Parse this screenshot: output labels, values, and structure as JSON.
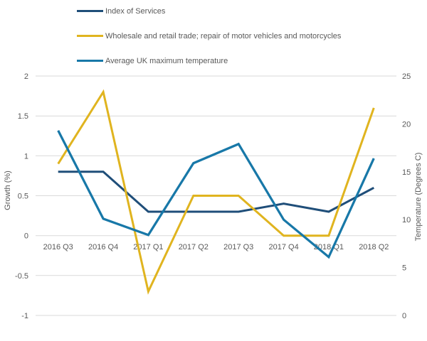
{
  "chart_data": {
    "type": "line",
    "categories": [
      "2016 Q3",
      "2016 Q4",
      "2017 Q1",
      "2017 Q2",
      "2017 Q3",
      "2017 Q4",
      "2018 Q1",
      "2018 Q2"
    ],
    "series": [
      {
        "name": "Index of Services",
        "axis": "left",
        "color": "#1F4E79",
        "stroke_width": 3,
        "values": [
          0.8,
          0.8,
          0.3,
          0.3,
          0.3,
          0.4,
          0.3,
          0.6
        ]
      },
      {
        "name": "Wholesale and retail trade; repair of motor vehicles and motorcycles",
        "axis": "left",
        "color": "#E0B41F",
        "stroke_width": 3,
        "values": [
          0.9,
          1.8,
          -0.7,
          0.5,
          0.5,
          0.0,
          0.0,
          1.6
        ]
      },
      {
        "name": "Average UK maximum temperature",
        "axis": "right",
        "color": "#1878A8",
        "stroke_width": 3.25,
        "values": [
          19.3,
          10.1,
          8.4,
          15.9,
          17.9,
          10.0,
          6.1,
          16.4
        ]
      }
    ],
    "left_axis": {
      "label": "Growth (%)",
      "min": -1,
      "max": 2,
      "ticks": [
        2,
        1.5,
        1,
        0.5,
        0,
        -0.5,
        -1
      ]
    },
    "right_axis": {
      "label": "Temperature (Degrees C)",
      "min": 0,
      "max": 25,
      "ticks": [
        25,
        20,
        15,
        10,
        5,
        0
      ]
    },
    "grid": true,
    "legend_position": "top-left",
    "colors": {
      "grid": "#D9D9D9",
      "text": "#595959",
      "background": "#FFFFFF"
    }
  }
}
